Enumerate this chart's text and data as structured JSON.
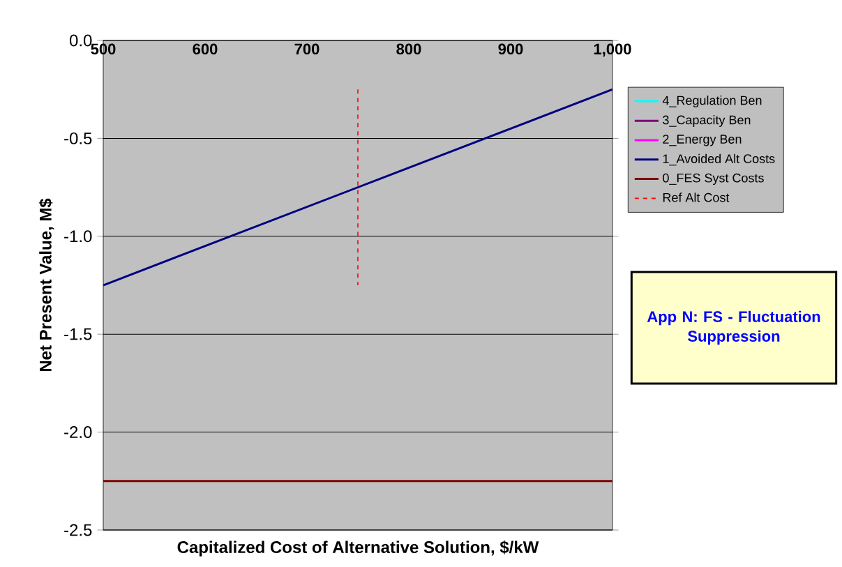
{
  "chart_data": {
    "type": "line",
    "xlabel": "Capitalized Cost of Alternative Solution, $/kW",
    "ylabel": "Net Present Value, M$",
    "xlim": [
      500,
      1000
    ],
    "ylim": [
      -2.5,
      0
    ],
    "xticks": [
      500,
      600,
      700,
      800,
      900,
      {
        "value": 1000,
        "label": "1,000"
      }
    ],
    "yticks": [
      {
        "value": -2.5,
        "label": "-2.5"
      },
      {
        "value": -2,
        "label": "-2.0"
      },
      {
        "value": -1.5,
        "label": "-1.5"
      },
      {
        "value": -1,
        "label": "-1.0"
      },
      {
        "value": -0.5,
        "label": "-0.5"
      },
      {
        "value": 0,
        "label": "0.0"
      }
    ],
    "grid": "y",
    "legend": "right",
    "series": [
      {
        "name": "4_Regulation Ben",
        "color": "#00ffff",
        "values": [
          null,
          null
        ]
      },
      {
        "name": "3_Capacity Ben",
        "color": "#800080",
        "values": [
          null,
          null
        ]
      },
      {
        "name": "2_Energy Ben",
        "color": "#ff00ff",
        "values": [
          null,
          null
        ]
      },
      {
        "name": "1_Avoided Alt Costs",
        "color": "#000080",
        "x": [
          500,
          1000
        ],
        "values": [
          -1.25,
          -0.25
        ]
      },
      {
        "name": "0_FES Syst Costs",
        "color": "#800000",
        "x": [
          500,
          1000
        ],
        "values": [
          -2.25,
          -2.25
        ]
      },
      {
        "name": "Ref Alt Cost",
        "color": "#ff0000",
        "x": [
          750,
          750
        ],
        "values": [
          -0.25,
          -1.25
        ],
        "line_style": "dashed"
      }
    ],
    "annotations": [
      "App N: FS - Fluctuation Suppression"
    ]
  }
}
